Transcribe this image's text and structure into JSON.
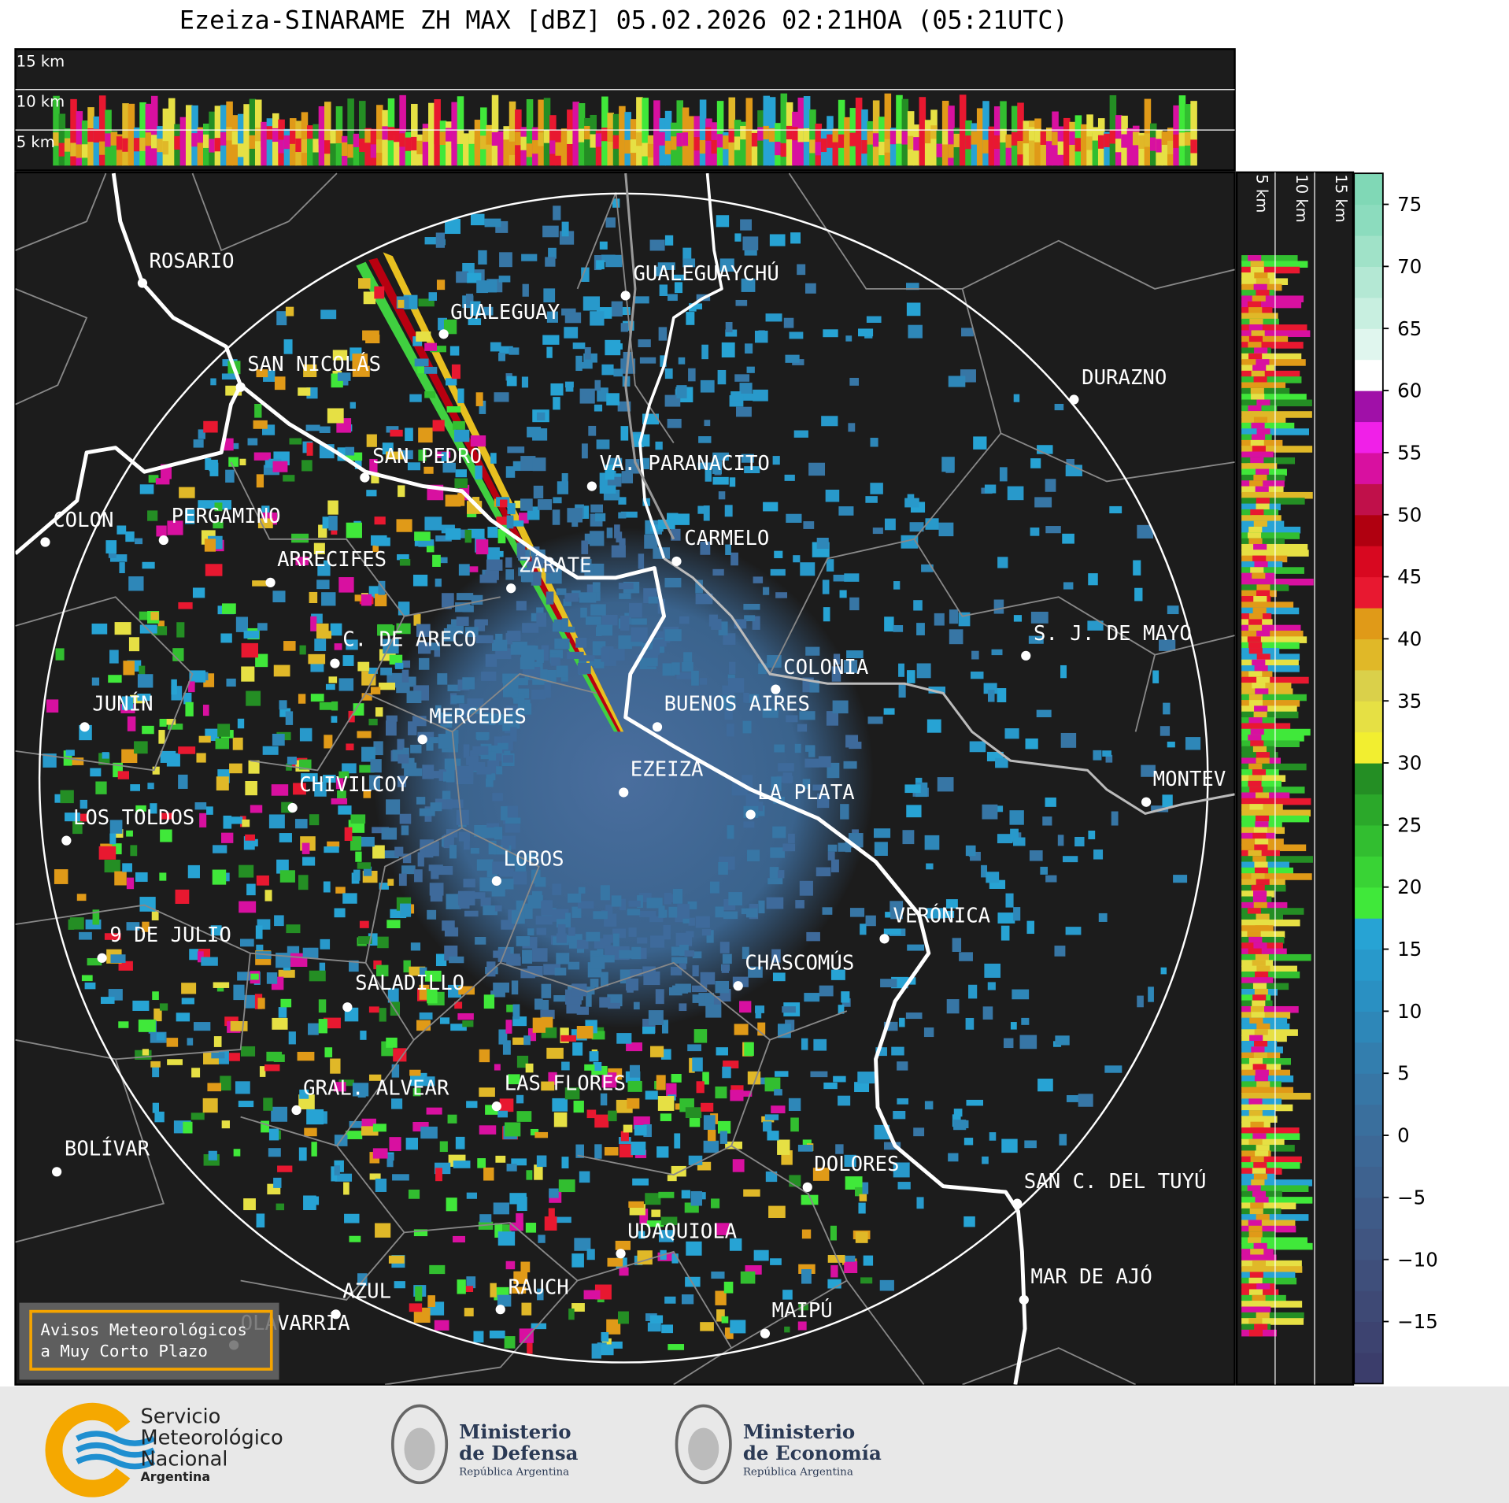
{
  "title": "Ezeiza-SINARAME ZH MAX [dBZ] 05.02.2026 02:21HOA (05:21UTC)",
  "height_labels": {
    "top": [
      "15 km",
      "10 km",
      "5 km"
    ],
    "side": [
      "5 km",
      "10 km",
      "15 km"
    ]
  },
  "cities": [
    "ROSARIO",
    "GUALEGUAYCHÚ",
    "GUALEGUAY",
    "SAN NICOLÁS",
    "DURAZNO",
    "SAN PEDRO",
    "VA. PARANACITO",
    "COLON",
    "PERGAMINO",
    "CARMELO",
    "ARRECIFES",
    "ZÁRATE",
    "S. J. DE MAYO",
    "C. DE ARECO",
    "COLONIA",
    "JUNÍN",
    "BUENOS AIRES",
    "MERCEDES",
    "EZEIZA",
    "MONTEV",
    "CHIVILCOY",
    "LA PLATA",
    "LOS TOLDOS",
    "LOBOS",
    "VERÓNICA",
    "9 DE JULIO",
    "CHASCOMÚS",
    "SALADILLO",
    "GRAL. ALVEAR",
    "LAS FLORES",
    "BOLÍVAR",
    "DOLORES",
    "SAN C. DEL TUYÚ",
    "UDAQUIOLA",
    "MAR DE AJÓ",
    "RAUCH",
    "AZUL",
    "OLAVARRÍA",
    "MAIPÚ"
  ],
  "colorbar": {
    "range": [
      -20,
      77.5
    ],
    "ticks": [
      {
        "value": -15,
        "label": "−15"
      },
      {
        "value": -10,
        "label": "−10"
      },
      {
        "value": -5,
        "label": "−5"
      },
      0,
      5,
      10,
      15,
      20,
      25,
      30,
      35,
      40,
      45,
      50,
      55,
      60,
      65,
      70,
      75
    ],
    "colors": [
      "#3b3d6b",
      "#3d4370",
      "#3e4975",
      "#3f4f7b",
      "#405581",
      "#3f5b88",
      "#3e628f",
      "#3d6896",
      "#3a6f9d",
      "#3776a5",
      "#337eae",
      "#2e87b8",
      "#2a90c2",
      "#2899cb",
      "#27a3d4",
      "#40e83a",
      "#39d335",
      "#32be30",
      "#2ba82a",
      "#248e24",
      "#f2ee30",
      "#e6e044",
      "#dad04a",
      "#e0b828",
      "#e09a18",
      "#e81830",
      "#d80820",
      "#b00010",
      "#c0104a",
      "#d810a0",
      "#f020e8",
      "#a010a8",
      "#ffffff",
      "#e0f6ee",
      "#c8efe0",
      "#b4e8d4",
      "#a0e2c8",
      "#8cdcbe",
      "#80d8b6"
    ]
  },
  "notice": [
    "Avisos Meteorológicos",
    "a Muy Corto Plazo"
  ],
  "logos": {
    "smn": [
      "Servicio",
      "Meteorológico",
      "Nacional",
      "Argentina"
    ],
    "defensa": [
      "Ministerio",
      "de Defensa",
      "República Argentina"
    ],
    "economia": [
      "Ministerio",
      "de Economía",
      "República Argentina"
    ]
  }
}
